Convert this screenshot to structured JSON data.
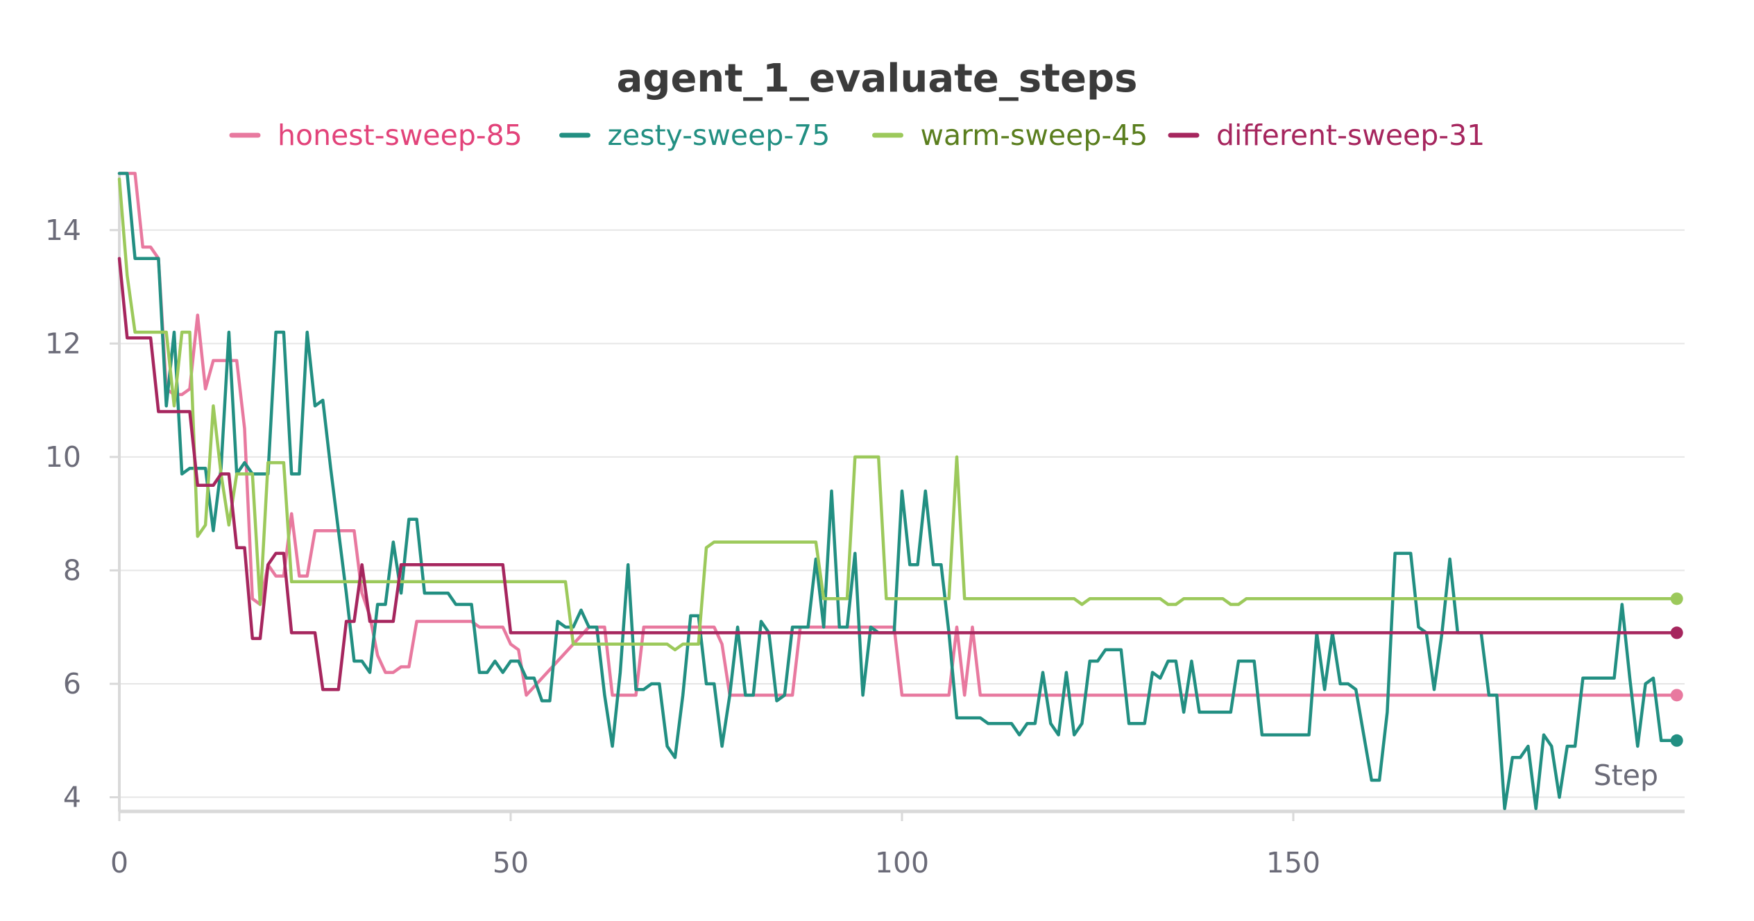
{
  "chart_data": {
    "type": "line",
    "title": "agent_1_evaluate_steps",
    "xlabel": "Step",
    "ylabel": "",
    "xlim": [
      0,
      200
    ],
    "ylim": [
      3.75,
      15
    ],
    "xticks": [
      0,
      50,
      100,
      150
    ],
    "yticks": [
      4,
      6,
      8,
      10,
      12,
      14
    ],
    "grid": true,
    "legend_position": "top-center",
    "series": [
      {
        "name": "honest-sweep-85",
        "color": "#e8799f",
        "legend_text_color": "#e2437a",
        "x": [
          0,
          1,
          2,
          3,
          4,
          5,
          6,
          7,
          8,
          9,
          10,
          11,
          12,
          13,
          14,
          15,
          16,
          17,
          18,
          19,
          20,
          21,
          22,
          23,
          24,
          25,
          26,
          27,
          28,
          29,
          30,
          31,
          32,
          33,
          34,
          35,
          36,
          37,
          38,
          39,
          40,
          45,
          46,
          49,
          50,
          51,
          52,
          60,
          61,
          62,
          63,
          64,
          65,
          66,
          67,
          68,
          69,
          70,
          71,
          72,
          73,
          74,
          75,
          76,
          77,
          78,
          79,
          80,
          81,
          82,
          83,
          84,
          85,
          86,
          87,
          88,
          89,
          90,
          91,
          92,
          93,
          94,
          95,
          96,
          97,
          98,
          99,
          100,
          101,
          105,
          106,
          107,
          108,
          109,
          110,
          111,
          112,
          199
        ],
        "y": [
          15,
          15,
          15,
          13.7,
          13.7,
          13.5,
          11.2,
          11.1,
          11.1,
          11.2,
          12.5,
          11.2,
          11.7,
          11.7,
          11.7,
          11.7,
          10.5,
          7.5,
          7.4,
          8.1,
          7.9,
          7.9,
          9.0,
          7.9,
          7.9,
          8.7,
          8.7,
          8.7,
          8.7,
          8.7,
          8.7,
          7.6,
          7.2,
          6.5,
          6.2,
          6.2,
          6.3,
          6.3,
          7.1,
          7.1,
          7.1,
          7.1,
          7.0,
          7.0,
          6.7,
          6.6,
          5.8,
          7.0,
          7.0,
          7.0,
          5.8,
          5.8,
          5.8,
          5.8,
          7.0,
          7.0,
          7.0,
          7.0,
          7.0,
          7.0,
          7.0,
          7.0,
          7.0,
          7.0,
          6.7,
          5.8,
          5.8,
          5.8,
          5.8,
          5.8,
          5.8,
          5.8,
          5.8,
          5.8,
          7.0,
          7.0,
          7.0,
          7.0,
          7.0,
          7.0,
          7.0,
          7.0,
          7.0,
          7.0,
          7.0,
          7.0,
          7.0,
          5.8,
          5.8,
          5.8,
          5.8,
          7.0,
          5.8,
          7.0,
          5.8,
          5.8,
          5.8,
          5.8
        ]
      },
      {
        "name": "zesty-sweep-75",
        "color": "#228f82",
        "legend_text_color": "#228f82",
        "x": [
          0,
          1,
          2,
          3,
          4,
          5,
          6,
          7,
          8,
          9,
          10,
          11,
          12,
          13,
          14,
          15,
          16,
          17,
          18,
          19,
          20,
          21,
          22,
          23,
          24,
          25,
          26,
          27,
          28,
          29,
          30,
          31,
          32,
          33,
          34,
          35,
          36,
          37,
          38,
          39,
          40,
          41,
          42,
          43,
          44,
          45,
          46,
          47,
          48,
          49,
          50,
          51,
          52,
          53,
          54,
          55,
          56,
          57,
          58,
          59,
          60,
          61,
          62,
          63,
          64,
          65,
          66,
          67,
          68,
          69,
          70,
          71,
          72,
          73,
          74,
          75,
          76,
          77,
          78,
          79,
          80,
          81,
          82,
          83,
          84,
          85,
          86,
          87,
          88,
          89,
          90,
          91,
          92,
          93,
          94,
          95,
          96,
          97,
          98,
          99,
          100,
          101,
          102,
          103,
          104,
          105,
          106,
          107,
          108,
          109,
          110,
          111,
          112,
          113,
          114,
          115,
          116,
          117,
          118,
          119,
          120,
          121,
          122,
          123,
          124,
          125,
          126,
          127,
          128,
          129,
          130,
          131,
          132,
          133,
          134,
          135,
          136,
          137,
          138,
          139,
          140,
          141,
          142,
          143,
          144,
          145,
          146,
          147,
          148,
          149,
          150,
          151,
          152,
          153,
          154,
          155,
          156,
          157,
          158,
          159,
          160,
          161,
          162,
          163,
          164,
          165,
          166,
          167,
          168,
          169,
          170,
          171,
          172,
          173,
          174,
          175,
          176,
          177,
          178,
          179,
          180,
          181,
          182,
          183,
          184,
          185,
          186,
          187,
          188,
          189,
          190,
          191,
          192,
          193,
          194,
          195,
          196,
          197,
          198,
          199
        ],
        "y": [
          15,
          15,
          13.5,
          13.5,
          13.5,
          13.5,
          10.9,
          12.2,
          9.7,
          9.8,
          9.8,
          9.8,
          8.7,
          9.8,
          12.2,
          9.7,
          9.9,
          9.7,
          9.7,
          9.7,
          12.2,
          12.2,
          9.7,
          9.7,
          12.2,
          10.9,
          11.0,
          9.8,
          8.7,
          7.6,
          6.4,
          6.4,
          6.2,
          7.4,
          7.4,
          8.5,
          7.6,
          8.9,
          8.9,
          7.6,
          7.6,
          7.6,
          7.6,
          7.4,
          7.4,
          7.4,
          6.2,
          6.2,
          6.4,
          6.2,
          6.4,
          6.4,
          6.1,
          6.1,
          5.7,
          5.7,
          7.1,
          7.0,
          7.0,
          7.3,
          7.0,
          7.0,
          5.8,
          4.9,
          6.2,
          8.1,
          5.9,
          5.9,
          6.0,
          6.0,
          4.9,
          4.7,
          5.8,
          7.2,
          7.2,
          6.0,
          6.0,
          4.9,
          5.8,
          7.0,
          5.8,
          5.8,
          7.1,
          6.9,
          5.7,
          5.8,
          7.0,
          7.0,
          7.0,
          8.2,
          7.0,
          9.4,
          7.0,
          7.0,
          8.3,
          5.8,
          7.0,
          6.9,
          6.9,
          6.9,
          9.4,
          8.1,
          8.1,
          9.4,
          8.1,
          8.1,
          6.9,
          5.4,
          5.4,
          5.4,
          5.4,
          5.3,
          5.3,
          5.3,
          5.3,
          5.1,
          5.3,
          5.3,
          6.2,
          5.3,
          5.1,
          6.2,
          5.1,
          5.3,
          6.4,
          6.4,
          6.6,
          6.6,
          6.6,
          5.3,
          5.3,
          5.3,
          6.2,
          6.1,
          6.4,
          6.4,
          5.5,
          6.4,
          5.5,
          5.5,
          5.5,
          5.5,
          5.5,
          6.4,
          6.4,
          6.4,
          5.1,
          5.1,
          5.1,
          5.1,
          5.1,
          5.1,
          5.1,
          6.9,
          5.9,
          6.9,
          6.0,
          6.0,
          5.9,
          5.1,
          4.3,
          4.3,
          5.5,
          8.3,
          8.3,
          8.3,
          7.0,
          6.9,
          5.9,
          6.9,
          8.2,
          6.9,
          6.9,
          6.9,
          6.9,
          5.8,
          5.8,
          3.8,
          4.7,
          4.7,
          4.9,
          3.8,
          5.1,
          4.9,
          4.0,
          4.9,
          4.9,
          6.1,
          6.1,
          6.1,
          6.1,
          6.1,
          7.4,
          6.1,
          4.9,
          6.0,
          6.1,
          5.0,
          5.0,
          5.0
        ]
      },
      {
        "name": "warm-sweep-45",
        "color": "#9cc95b",
        "legend_text_color": "#5a7e1e",
        "x": [
          0,
          1,
          2,
          3,
          4,
          5,
          6,
          7,
          8,
          9,
          10,
          11,
          12,
          13,
          14,
          15,
          16,
          17,
          18,
          19,
          20,
          21,
          22,
          23,
          24,
          25,
          57,
          58,
          59,
          70,
          71,
          72,
          73,
          74,
          75,
          76,
          77,
          80,
          85,
          89,
          90,
          91,
          92,
          93,
          94,
          95,
          96,
          97,
          98,
          99,
          100,
          105,
          106,
          107,
          108,
          109,
          110,
          122,
          123,
          124,
          125,
          126,
          133,
          134,
          135,
          136,
          137,
          141,
          142,
          143,
          144,
          145,
          199
        ],
        "y": [
          14.9,
          13.2,
          12.2,
          12.2,
          12.2,
          12.2,
          12.2,
          10.9,
          12.2,
          12.2,
          8.6,
          8.8,
          10.9,
          9.7,
          8.8,
          9.7,
          9.7,
          9.7,
          7.4,
          9.9,
          9.9,
          9.9,
          7.8,
          7.8,
          7.8,
          7.8,
          7.8,
          6.7,
          6.7,
          6.7,
          6.6,
          6.7,
          6.7,
          6.7,
          8.4,
          8.5,
          8.5,
          8.5,
          8.5,
          8.5,
          7.5,
          7.5,
          7.5,
          7.5,
          10.0,
          10.0,
          10.0,
          10.0,
          7.5,
          7.5,
          7.5,
          7.5,
          7.5,
          10.0,
          7.5,
          7.5,
          7.5,
          7.5,
          7.4,
          7.5,
          7.5,
          7.5,
          7.5,
          7.4,
          7.4,
          7.5,
          7.5,
          7.5,
          7.4,
          7.4,
          7.5,
          7.5,
          7.5
        ]
      },
      {
        "name": "different-sweep-31",
        "color": "#a6265e",
        "legend_text_color": "#a6265e",
        "x": [
          0,
          1,
          2,
          3,
          4,
          5,
          6,
          7,
          8,
          9,
          10,
          11,
          12,
          13,
          14,
          15,
          16,
          17,
          18,
          19,
          20,
          21,
          22,
          23,
          24,
          25,
          26,
          27,
          28,
          29,
          30,
          31,
          32,
          33,
          34,
          35,
          36,
          37,
          38,
          48,
          49,
          50,
          51,
          52,
          199
        ],
        "y": [
          13.5,
          12.1,
          12.1,
          12.1,
          12.1,
          10.8,
          10.8,
          10.8,
          10.8,
          10.8,
          9.5,
          9.5,
          9.5,
          9.7,
          9.7,
          8.4,
          8.4,
          6.8,
          6.8,
          8.1,
          8.3,
          8.3,
          6.9,
          6.9,
          6.9,
          6.9,
          5.9,
          5.9,
          5.9,
          7.1,
          7.1,
          8.1,
          7.1,
          7.1,
          7.1,
          7.1,
          8.1,
          8.1,
          8.1,
          8.1,
          8.1,
          6.9,
          6.9,
          6.9,
          6.9
        ]
      }
    ]
  }
}
